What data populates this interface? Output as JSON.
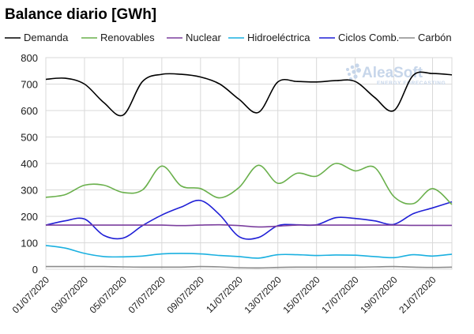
{
  "chart_data": {
    "type": "line",
    "title": "Balance diario [GWh]",
    "xlabel": "",
    "ylabel": "",
    "ylim": [
      0,
      800
    ],
    "yticks": [
      0,
      100,
      200,
      300,
      400,
      500,
      600,
      700,
      800
    ],
    "grid": true,
    "legend_position": "top",
    "x": [
      "01/07/2020",
      "02/07/2020",
      "03/07/2020",
      "04/07/2020",
      "05/07/2020",
      "06/07/2020",
      "07/07/2020",
      "08/07/2020",
      "09/07/2020",
      "10/07/2020",
      "11/07/2020",
      "12/07/2020",
      "13/07/2020",
      "14/07/2020",
      "15/07/2020",
      "16/07/2020",
      "17/07/2020",
      "18/07/2020",
      "19/07/2020",
      "20/07/2020",
      "21/07/2020",
      "22/07/2020"
    ],
    "xtick_labels": [
      "01/07/2020",
      "03/07/2020",
      "05/07/2020",
      "07/07/2020",
      "09/07/2020",
      "11/07/2020",
      "13/07/2020",
      "15/07/2020",
      "17/07/2020",
      "19/07/2020",
      "21/07/2020"
    ],
    "series": [
      {
        "name": "Demanda",
        "color": "#000000",
        "values": [
          718,
          722,
          700,
          630,
          583,
          710,
          737,
          737,
          727,
          700,
          642,
          593,
          708,
          710,
          708,
          713,
          710,
          650,
          600,
          733,
          740,
          735
        ]
      },
      {
        "name": "Renovables",
        "color": "#6ab04c",
        "values": [
          272,
          282,
          318,
          318,
          290,
          300,
          390,
          315,
          305,
          270,
          310,
          393,
          325,
          363,
          352,
          400,
          372,
          385,
          275,
          248,
          305,
          245
        ]
      },
      {
        "name": "Nuclear",
        "color": "#7b3f9e",
        "values": [
          167,
          167,
          167,
          167,
          167,
          167,
          167,
          165,
          167,
          168,
          165,
          160,
          163,
          167,
          167,
          167,
          167,
          167,
          167,
          166,
          166,
          166
        ]
      },
      {
        "name": "Hidroeléctrica",
        "color": "#1ab0e0",
        "values": [
          90,
          80,
          60,
          48,
          47,
          50,
          58,
          60,
          58,
          52,
          48,
          42,
          55,
          55,
          52,
          54,
          53,
          48,
          44,
          55,
          50,
          57
        ]
      },
      {
        "name": "Ciclos Comb.",
        "color": "#1f1fd6",
        "values": [
          167,
          183,
          190,
          128,
          118,
          165,
          205,
          235,
          260,
          205,
          123,
          120,
          165,
          168,
          168,
          195,
          192,
          183,
          170,
          210,
          232,
          255
        ]
      },
      {
        "name": "Carbón",
        "color": "#8c8c8c",
        "values": [
          10,
          10,
          10,
          10,
          9,
          8,
          8,
          8,
          10,
          9,
          6,
          5,
          7,
          8,
          8,
          8,
          8,
          9,
          10,
          8,
          7,
          8
        ]
      }
    ]
  },
  "watermark": {
    "brand": "AleaSoft",
    "tagline": "ENERGY FORECASTING",
    "color": "#c7d6ea"
  },
  "colors": {
    "grid": "#d9d9d9",
    "text": "#1a1a1a"
  }
}
